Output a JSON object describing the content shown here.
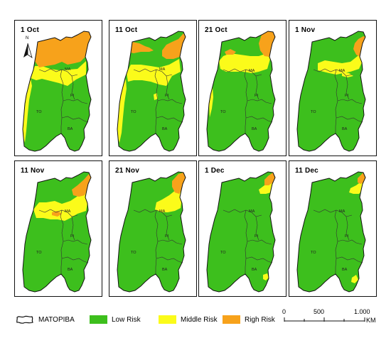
{
  "panels": [
    {
      "date": "1 Oct",
      "risk": "p1"
    },
    {
      "date": "11 Oct",
      "risk": "p2"
    },
    {
      "date": "21 Oct",
      "risk": "p3"
    },
    {
      "date": "1 Nov",
      "risk": "p4"
    },
    {
      "date": "11 Nov",
      "risk": "p5"
    },
    {
      "date": "21 Nov",
      "risk": "p6"
    },
    {
      "date": "1 Dec",
      "risk": "p7"
    },
    {
      "date": "11 Dec",
      "risk": "p8"
    }
  ],
  "state_labels": [
    "MA",
    "PI",
    "TO",
    "BA"
  ],
  "north_label": "N",
  "legend": {
    "region_label": "MATOPIBA",
    "items": [
      {
        "label": "Low Risk",
        "color": "#3dbf1d"
      },
      {
        "label": "Middle Risk",
        "color": "#fbfb1a"
      },
      {
        "label": "Righ Risk",
        "color": "#f7a21b"
      }
    ]
  },
  "scale_bar": {
    "ticks": [
      "0",
      "500",
      "1.000"
    ],
    "unit": "KM"
  },
  "colors": {
    "low": "#3dbf1d",
    "middle": "#fbfb1a",
    "high": "#f7a21b",
    "border": "#111111"
  }
}
